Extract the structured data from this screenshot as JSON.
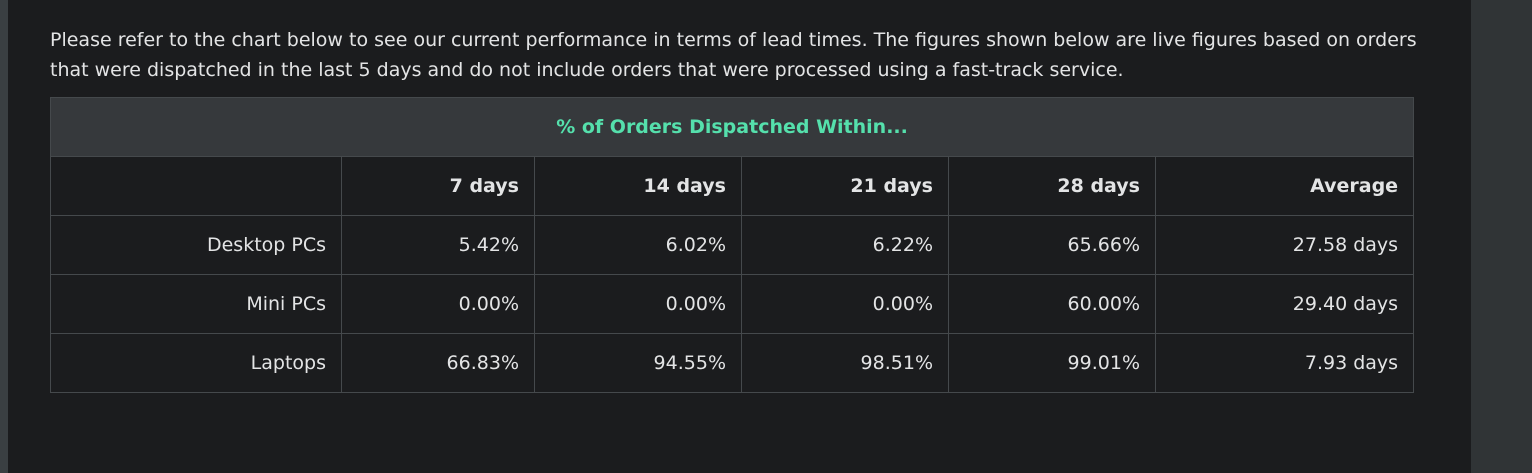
{
  "intro_text": "Please refer to the chart below to see our current performance in terms of lead times. The figures shown below are live figures based on orders that were dispatched in the last 5 days and do not include orders that were processed using a fast-track service.",
  "table": {
    "caption": "% of Orders Dispatched Within...",
    "headers": [
      "",
      "7 days",
      "14 days",
      "21 days",
      "28 days",
      "Average"
    ],
    "rows": [
      {
        "label": "Desktop PCs",
        "values": [
          "5.42%",
          "6.02%",
          "6.22%",
          "65.66%",
          "27.58 days"
        ]
      },
      {
        "label": "Mini PCs",
        "values": [
          "0.00%",
          "0.00%",
          "0.00%",
          "60.00%",
          "29.40 days"
        ]
      },
      {
        "label": "Laptops",
        "values": [
          "66.83%",
          "94.55%",
          "98.51%",
          "99.01%",
          "7.93 days"
        ]
      }
    ]
  },
  "colors": {
    "caption_text": "#55e0ac",
    "caption_background": "#36393c",
    "panel_background": "#1b1c1e",
    "border": "#45494c"
  }
}
